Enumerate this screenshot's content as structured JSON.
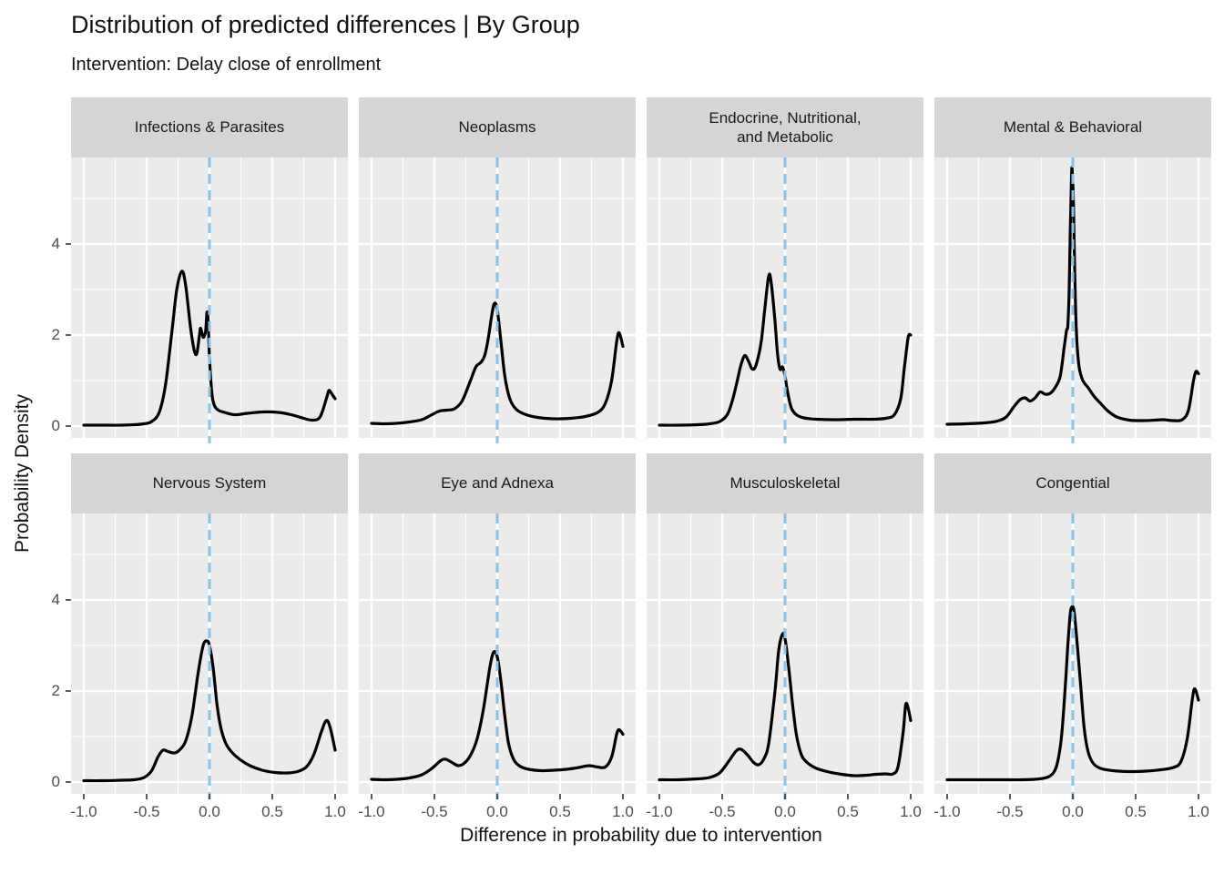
{
  "header": {
    "title": "Distribution of predicted differences | By Group",
    "subtitle": "Intervention: Delay close of enrollment"
  },
  "axes": {
    "x_label": "Difference in probability due to intervention",
    "y_label": "Probability Density",
    "x_tick_labels": [
      "-1.0",
      "-0.5",
      "0.0",
      "0.5",
      "1.0"
    ],
    "x_tick_values": [
      -1,
      -0.5,
      0,
      0.5,
      1
    ],
    "y_tick_labels": [
      "0",
      "2",
      "4"
    ],
    "y_tick_values": [
      0,
      2,
      4
    ]
  },
  "colors": {
    "panel_background": "#ebebeb",
    "strip_background": "#d5d5d5",
    "grid": "#ffffff",
    "curve": "#000000",
    "reference_line": "#85c4e8",
    "tick_mark": "#333333",
    "tick_label": "#4d4d4d"
  },
  "chart_data": {
    "type": "line",
    "subtype": "faceted-density",
    "title": "Distribution of predicted differences | By Group",
    "subtitle": "Intervention: Delay close of enrollment",
    "xlabel": "Difference in probability due to intervention",
    "ylabel": "Probability Density",
    "xlim": [
      -1,
      1
    ],
    "ylim": [
      -0.26,
      5.9
    ],
    "x_ticks": [
      -1,
      -0.5,
      0,
      0.5,
      1
    ],
    "y_ticks": [
      0,
      2,
      4
    ],
    "x_minor": [
      -0.75,
      -0.25,
      0.25,
      0.75
    ],
    "y_minor": [
      1,
      3,
      5
    ],
    "grid": true,
    "legend": false,
    "reference_line": {
      "x": 0,
      "style": "dashed"
    },
    "facets": [
      {
        "label": "Infections & Parasites",
        "points": [
          [
            -1,
            0.02
          ],
          [
            -0.85,
            0.02
          ],
          [
            -0.7,
            0.02
          ],
          [
            -0.6,
            0.03
          ],
          [
            -0.52,
            0.05
          ],
          [
            -0.46,
            0.1
          ],
          [
            -0.4,
            0.3
          ],
          [
            -0.35,
            0.9
          ],
          [
            -0.3,
            2.05
          ],
          [
            -0.26,
            3.0
          ],
          [
            -0.22,
            3.4
          ],
          [
            -0.19,
            3.1
          ],
          [
            -0.15,
            2.15
          ],
          [
            -0.12,
            1.65
          ],
          [
            -0.1,
            1.6
          ],
          [
            -0.08,
            2.0
          ],
          [
            -0.07,
            2.15
          ],
          [
            -0.05,
            1.95
          ],
          [
            -0.03,
            2.1
          ],
          [
            -0.02,
            2.5
          ],
          [
            -0.01,
            2.3
          ],
          [
            0.0,
            1.5
          ],
          [
            0.02,
            0.7
          ],
          [
            0.04,
            0.45
          ],
          [
            0.07,
            0.35
          ],
          [
            0.12,
            0.3
          ],
          [
            0.2,
            0.25
          ],
          [
            0.3,
            0.28
          ],
          [
            0.42,
            0.31
          ],
          [
            0.55,
            0.3
          ],
          [
            0.65,
            0.25
          ],
          [
            0.75,
            0.17
          ],
          [
            0.82,
            0.13
          ],
          [
            0.88,
            0.2
          ],
          [
            0.93,
            0.6
          ],
          [
            0.95,
            0.78
          ],
          [
            0.97,
            0.72
          ],
          [
            1.0,
            0.6
          ]
        ]
      },
      {
        "label": "Neoplasms",
        "points": [
          [
            -1,
            0.06
          ],
          [
            -0.9,
            0.05
          ],
          [
            -0.8,
            0.06
          ],
          [
            -0.7,
            0.09
          ],
          [
            -0.6,
            0.14
          ],
          [
            -0.52,
            0.25
          ],
          [
            -0.46,
            0.33
          ],
          [
            -0.4,
            0.35
          ],
          [
            -0.34,
            0.38
          ],
          [
            -0.28,
            0.55
          ],
          [
            -0.22,
            0.95
          ],
          [
            -0.17,
            1.3
          ],
          [
            -0.13,
            1.4
          ],
          [
            -0.1,
            1.55
          ],
          [
            -0.07,
            1.95
          ],
          [
            -0.04,
            2.5
          ],
          [
            -0.02,
            2.7
          ],
          [
            0.0,
            2.55
          ],
          [
            0.03,
            1.85
          ],
          [
            0.06,
            1.1
          ],
          [
            0.1,
            0.6
          ],
          [
            0.15,
            0.37
          ],
          [
            0.22,
            0.26
          ],
          [
            0.32,
            0.19
          ],
          [
            0.45,
            0.16
          ],
          [
            0.58,
            0.17
          ],
          [
            0.7,
            0.21
          ],
          [
            0.8,
            0.3
          ],
          [
            0.86,
            0.5
          ],
          [
            0.91,
            1.0
          ],
          [
            0.95,
            1.85
          ],
          [
            0.97,
            2.05
          ],
          [
            1.0,
            1.75
          ]
        ]
      },
      {
        "label": "Endocrine, Nutritional,\nand Metabolic",
        "points": [
          [
            -1,
            0.02
          ],
          [
            -0.85,
            0.02
          ],
          [
            -0.7,
            0.03
          ],
          [
            -0.6,
            0.05
          ],
          [
            -0.52,
            0.1
          ],
          [
            -0.46,
            0.25
          ],
          [
            -0.42,
            0.55
          ],
          [
            -0.38,
            1.0
          ],
          [
            -0.35,
            1.35
          ],
          [
            -0.32,
            1.55
          ],
          [
            -0.29,
            1.42
          ],
          [
            -0.26,
            1.25
          ],
          [
            -0.23,
            1.35
          ],
          [
            -0.19,
            1.85
          ],
          [
            -0.16,
            2.6
          ],
          [
            -0.13,
            3.3
          ],
          [
            -0.11,
            3.15
          ],
          [
            -0.08,
            2.3
          ],
          [
            -0.06,
            1.6
          ],
          [
            -0.04,
            1.25
          ],
          [
            -0.02,
            1.3
          ],
          [
            0.0,
            1.1
          ],
          [
            0.02,
            0.75
          ],
          [
            0.05,
            0.4
          ],
          [
            0.09,
            0.25
          ],
          [
            0.15,
            0.18
          ],
          [
            0.25,
            0.15
          ],
          [
            0.4,
            0.14
          ],
          [
            0.55,
            0.15
          ],
          [
            0.7,
            0.15
          ],
          [
            0.8,
            0.17
          ],
          [
            0.87,
            0.25
          ],
          [
            0.92,
            0.6
          ],
          [
            0.95,
            1.3
          ],
          [
            0.98,
            1.95
          ],
          [
            1.0,
            2.0
          ]
        ]
      },
      {
        "label": "Mental & Behavioral",
        "points": [
          [
            -1,
            0.04
          ],
          [
            -0.85,
            0.05
          ],
          [
            -0.7,
            0.07
          ],
          [
            -0.6,
            0.11
          ],
          [
            -0.53,
            0.2
          ],
          [
            -0.47,
            0.42
          ],
          [
            -0.42,
            0.58
          ],
          [
            -0.38,
            0.62
          ],
          [
            -0.34,
            0.55
          ],
          [
            -0.3,
            0.62
          ],
          [
            -0.26,
            0.75
          ],
          [
            -0.22,
            0.7
          ],
          [
            -0.18,
            0.72
          ],
          [
            -0.14,
            0.85
          ],
          [
            -0.1,
            1.1
          ],
          [
            -0.07,
            1.7
          ],
          [
            -0.05,
            2.1
          ],
          [
            -0.04,
            2.2
          ],
          [
            -0.03,
            2.9
          ],
          [
            -0.02,
            4.3
          ],
          [
            -0.01,
            5.5
          ],
          [
            -0.005,
            5.62
          ],
          [
            0.005,
            4.9
          ],
          [
            0.015,
            3.4
          ],
          [
            0.03,
            2.0
          ],
          [
            0.05,
            1.3
          ],
          [
            0.08,
            1.0
          ],
          [
            0.12,
            0.85
          ],
          [
            0.17,
            0.65
          ],
          [
            0.22,
            0.5
          ],
          [
            0.28,
            0.33
          ],
          [
            0.35,
            0.2
          ],
          [
            0.45,
            0.13
          ],
          [
            0.55,
            0.12
          ],
          [
            0.65,
            0.13
          ],
          [
            0.72,
            0.14
          ],
          [
            0.8,
            0.12
          ],
          [
            0.87,
            0.14
          ],
          [
            0.92,
            0.35
          ],
          [
            0.96,
            1.0
          ],
          [
            0.98,
            1.2
          ],
          [
            1.0,
            1.15
          ]
        ]
      },
      {
        "label": "Nervous System",
        "points": [
          [
            -1,
            0.03
          ],
          [
            -0.85,
            0.03
          ],
          [
            -0.7,
            0.04
          ],
          [
            -0.6,
            0.05
          ],
          [
            -0.52,
            0.1
          ],
          [
            -0.46,
            0.25
          ],
          [
            -0.41,
            0.55
          ],
          [
            -0.37,
            0.7
          ],
          [
            -0.33,
            0.67
          ],
          [
            -0.28,
            0.64
          ],
          [
            -0.24,
            0.7
          ],
          [
            -0.19,
            0.9
          ],
          [
            -0.14,
            1.45
          ],
          [
            -0.09,
            2.4
          ],
          [
            -0.05,
            3.0
          ],
          [
            -0.02,
            3.1
          ],
          [
            0.0,
            3.0
          ],
          [
            0.03,
            2.5
          ],
          [
            0.06,
            1.7
          ],
          [
            0.09,
            1.2
          ],
          [
            0.13,
            0.85
          ],
          [
            0.18,
            0.65
          ],
          [
            0.25,
            0.48
          ],
          [
            0.33,
            0.35
          ],
          [
            0.42,
            0.26
          ],
          [
            0.52,
            0.21
          ],
          [
            0.62,
            0.2
          ],
          [
            0.7,
            0.23
          ],
          [
            0.77,
            0.33
          ],
          [
            0.83,
            0.6
          ],
          [
            0.89,
            1.1
          ],
          [
            0.93,
            1.35
          ],
          [
            0.96,
            1.2
          ],
          [
            1.0,
            0.7
          ]
        ]
      },
      {
        "label": "Eye and Adnexa",
        "points": [
          [
            -1,
            0.06
          ],
          [
            -0.9,
            0.05
          ],
          [
            -0.8,
            0.06
          ],
          [
            -0.7,
            0.09
          ],
          [
            -0.6,
            0.16
          ],
          [
            -0.52,
            0.3
          ],
          [
            -0.45,
            0.47
          ],
          [
            -0.41,
            0.5
          ],
          [
            -0.36,
            0.43
          ],
          [
            -0.31,
            0.36
          ],
          [
            -0.26,
            0.42
          ],
          [
            -0.21,
            0.6
          ],
          [
            -0.16,
            0.95
          ],
          [
            -0.11,
            1.6
          ],
          [
            -0.06,
            2.5
          ],
          [
            -0.03,
            2.85
          ],
          [
            0.0,
            2.75
          ],
          [
            0.03,
            2.2
          ],
          [
            0.06,
            1.45
          ],
          [
            0.09,
            0.85
          ],
          [
            0.13,
            0.5
          ],
          [
            0.18,
            0.35
          ],
          [
            0.25,
            0.28
          ],
          [
            0.35,
            0.25
          ],
          [
            0.45,
            0.26
          ],
          [
            0.55,
            0.28
          ],
          [
            0.65,
            0.32
          ],
          [
            0.73,
            0.36
          ],
          [
            0.8,
            0.33
          ],
          [
            0.86,
            0.33
          ],
          [
            0.91,
            0.55
          ],
          [
            0.95,
            1.05
          ],
          [
            0.97,
            1.15
          ],
          [
            1.0,
            1.05
          ]
        ]
      },
      {
        "label": "Musculoskeletal",
        "points": [
          [
            -1,
            0.05
          ],
          [
            -0.85,
            0.05
          ],
          [
            -0.7,
            0.07
          ],
          [
            -0.6,
            0.1
          ],
          [
            -0.52,
            0.2
          ],
          [
            -0.45,
            0.45
          ],
          [
            -0.39,
            0.68
          ],
          [
            -0.35,
            0.72
          ],
          [
            -0.3,
            0.6
          ],
          [
            -0.25,
            0.43
          ],
          [
            -0.21,
            0.38
          ],
          [
            -0.17,
            0.5
          ],
          [
            -0.13,
            0.85
          ],
          [
            -0.08,
            2.0
          ],
          [
            -0.05,
            2.9
          ],
          [
            -0.02,
            3.25
          ],
          [
            0.0,
            3.15
          ],
          [
            0.03,
            2.5
          ],
          [
            0.06,
            1.7
          ],
          [
            0.09,
            1.05
          ],
          [
            0.13,
            0.6
          ],
          [
            0.18,
            0.42
          ],
          [
            0.25,
            0.3
          ],
          [
            0.35,
            0.22
          ],
          [
            0.45,
            0.17
          ],
          [
            0.55,
            0.14
          ],
          [
            0.65,
            0.15
          ],
          [
            0.72,
            0.17
          ],
          [
            0.8,
            0.18
          ],
          [
            0.86,
            0.18
          ],
          [
            0.9,
            0.35
          ],
          [
            0.94,
            1.1
          ],
          [
            0.96,
            1.7
          ],
          [
            0.98,
            1.62
          ],
          [
            1.0,
            1.35
          ]
        ]
      },
      {
        "label": "Congential",
        "points": [
          [
            -1,
            0.05
          ],
          [
            -0.85,
            0.05
          ],
          [
            -0.7,
            0.05
          ],
          [
            -0.55,
            0.05
          ],
          [
            -0.4,
            0.05
          ],
          [
            -0.3,
            0.06
          ],
          [
            -0.24,
            0.08
          ],
          [
            -0.19,
            0.12
          ],
          [
            -0.15,
            0.22
          ],
          [
            -0.12,
            0.45
          ],
          [
            -0.09,
            1.0
          ],
          [
            -0.06,
            2.1
          ],
          [
            -0.04,
            3.0
          ],
          [
            -0.02,
            3.7
          ],
          [
            -0.005,
            3.85
          ],
          [
            0.01,
            3.75
          ],
          [
            0.03,
            3.2
          ],
          [
            0.06,
            2.2
          ],
          [
            0.09,
            1.2
          ],
          [
            0.12,
            0.68
          ],
          [
            0.16,
            0.42
          ],
          [
            0.22,
            0.3
          ],
          [
            0.32,
            0.25
          ],
          [
            0.45,
            0.23
          ],
          [
            0.58,
            0.24
          ],
          [
            0.7,
            0.27
          ],
          [
            0.8,
            0.32
          ],
          [
            0.86,
            0.45
          ],
          [
            0.91,
            0.95
          ],
          [
            0.95,
            1.8
          ],
          [
            0.97,
            2.05
          ],
          [
            1.0,
            1.8
          ]
        ]
      }
    ]
  }
}
